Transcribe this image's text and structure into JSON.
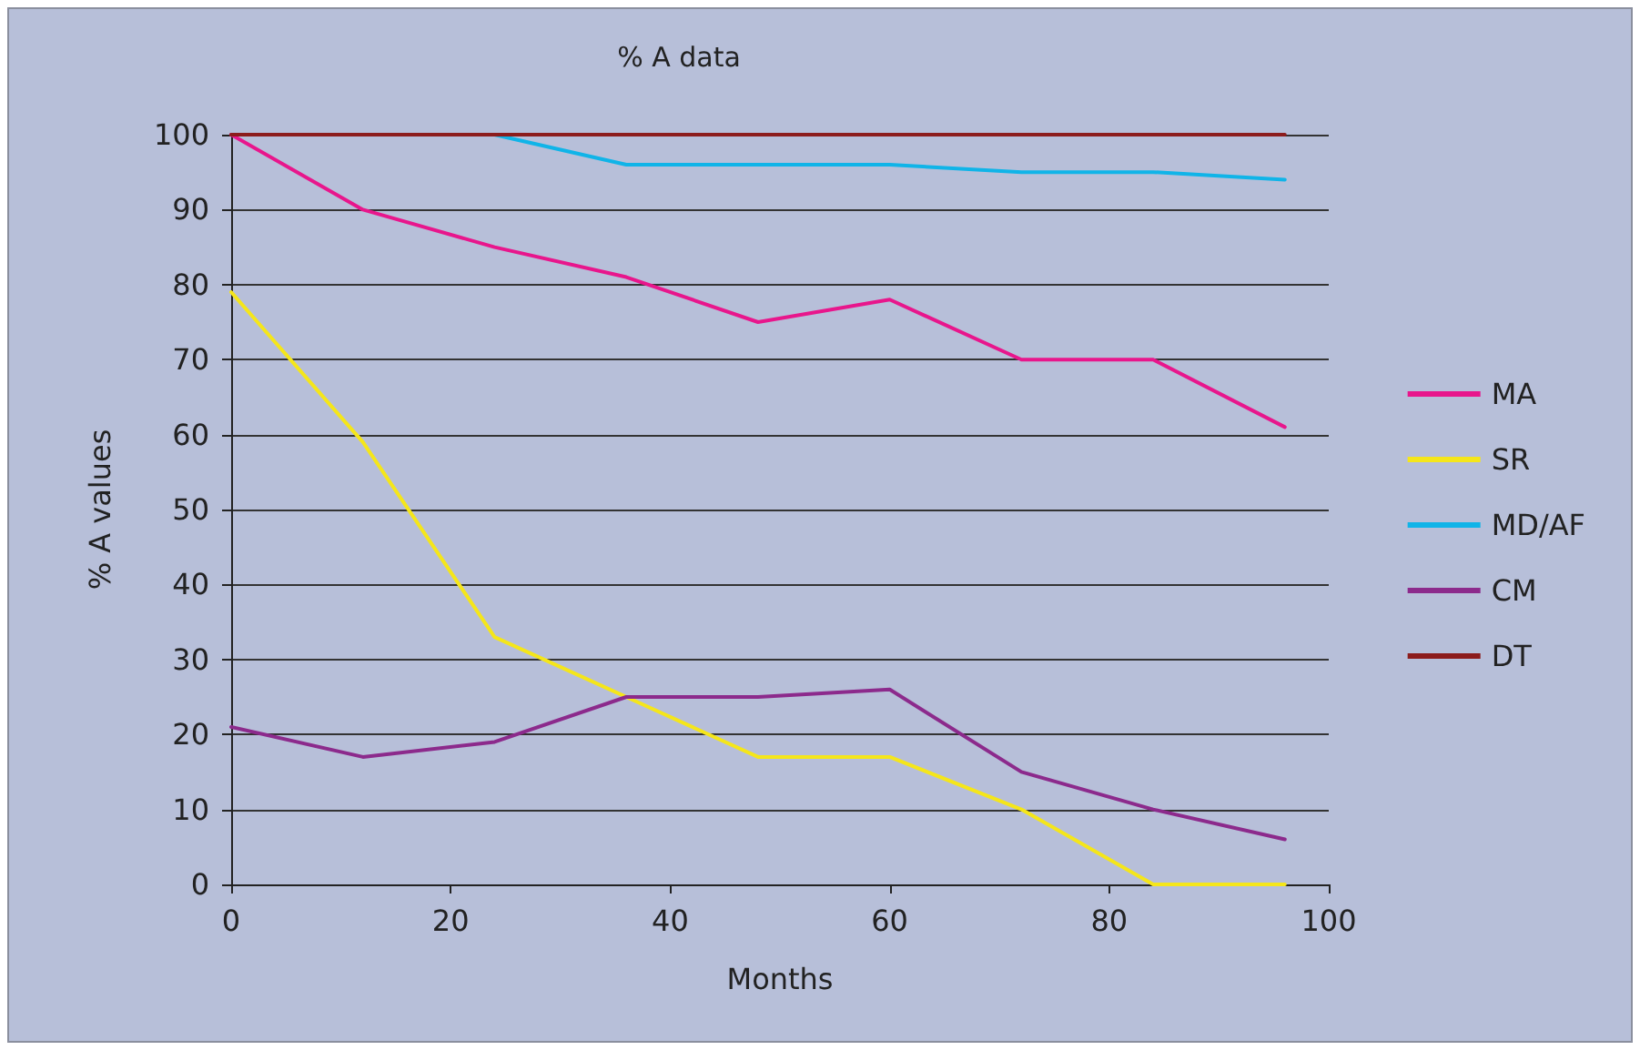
{
  "chart_data": {
    "type": "line",
    "title": "% A data",
    "xlabel": "Months",
    "ylabel": "% A values",
    "x": [
      0,
      12,
      24,
      36,
      48,
      60,
      72,
      84,
      96
    ],
    "series": [
      {
        "name": "MA",
        "color": "#e8168c",
        "values": [
          100,
          90,
          85,
          81,
          75,
          78,
          70,
          70,
          61
        ]
      },
      {
        "name": "SR",
        "color": "#f5e61a",
        "values": [
          79,
          59,
          33,
          25,
          17,
          17,
          10,
          0,
          0
        ]
      },
      {
        "name": "MD/AF",
        "color": "#10b4e8",
        "values": [
          null,
          null,
          100,
          96,
          96,
          96,
          95,
          95,
          94
        ]
      },
      {
        "name": "CM",
        "color": "#8c2a8c",
        "values": [
          21,
          17,
          19,
          25,
          25,
          26,
          15,
          10,
          6
        ]
      },
      {
        "name": "DT",
        "color": "#8c1c1c",
        "values": [
          100,
          100,
          100,
          100,
          100,
          100,
          100,
          100,
          100
        ]
      }
    ],
    "xlim": [
      0,
      100
    ],
    "xticks": [
      0,
      20,
      40,
      60,
      80,
      100
    ],
    "ylim": [
      0,
      100
    ],
    "yticks": [
      0,
      10,
      20,
      30,
      40,
      50,
      60,
      70,
      80,
      90,
      100
    ],
    "grid": "y",
    "legend": "right",
    "marker": "none",
    "line_style": "solid"
  }
}
